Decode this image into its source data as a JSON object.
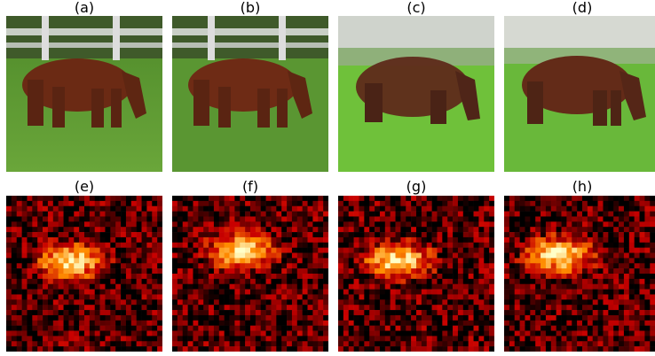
{
  "panels": {
    "a": {
      "label": "(a)"
    },
    "b": {
      "label": "(b)"
    },
    "c": {
      "label": "(c)"
    },
    "d": {
      "label": "(d)"
    },
    "e": {
      "label": "(e)"
    },
    "f": {
      "label": "(f)"
    },
    "g": {
      "label": "(g)"
    },
    "h": {
      "label": "(h)"
    }
  }
}
